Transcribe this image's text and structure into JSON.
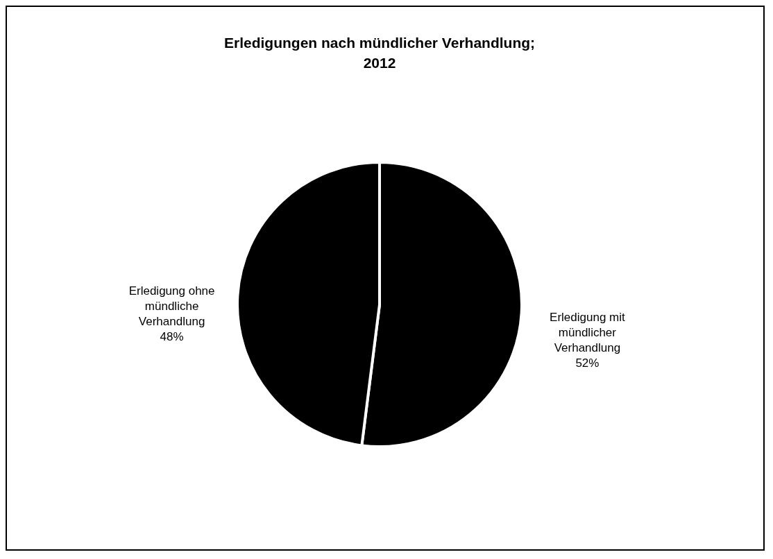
{
  "chart_data": {
    "type": "pie",
    "title": "Erledigungen nach mündlicher Verhandlung; 2012",
    "categories": [
      "Erledigung mit mündlicher Verhandlung",
      "Erledigung ohne mündliche Verhandlung"
    ],
    "values": [
      52,
      48
    ],
    "value_labels": [
      "52%",
      "48%"
    ],
    "colors": [
      "#000000",
      "#000000"
    ],
    "legend": false
  }
}
